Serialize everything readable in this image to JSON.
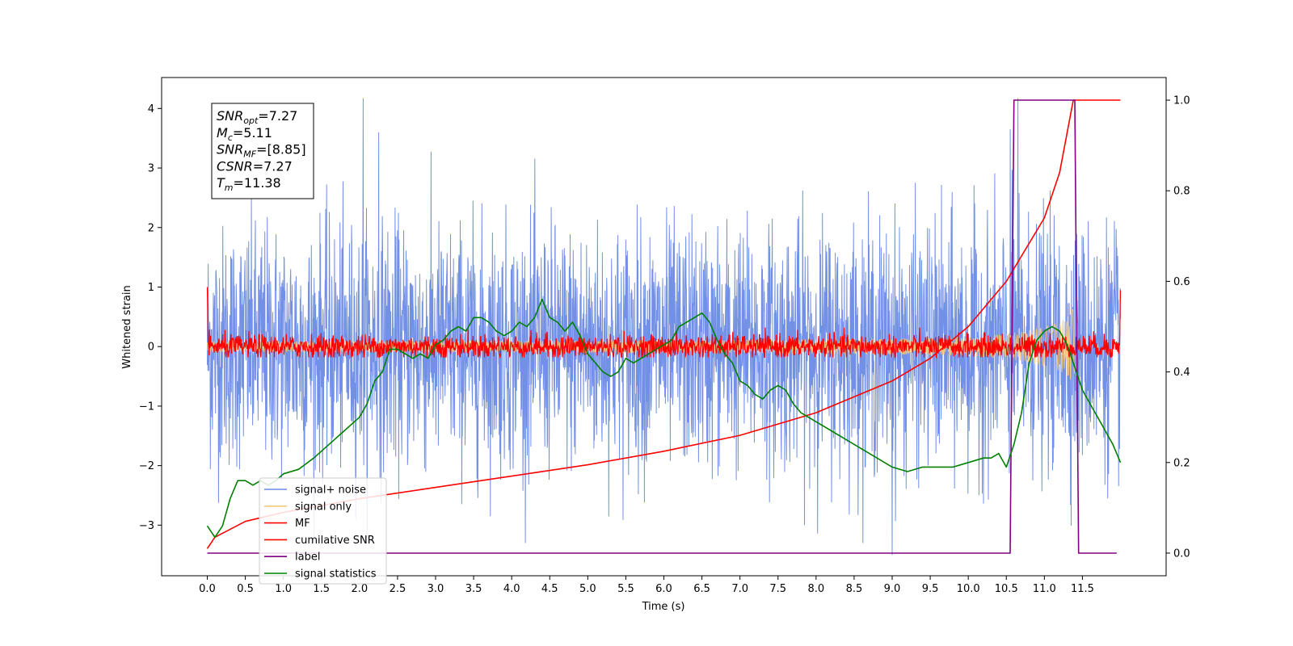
{
  "chart_data": {
    "type": "line",
    "title": "",
    "xlabel": "Time (s)",
    "ylabel": "Whitened strain",
    "xlim": [
      -0.6,
      12.6
    ],
    "ylim": [
      -3.85,
      4.52
    ],
    "y2lim": [
      -0.05,
      1.05
    ],
    "grid": false,
    "legend_position": "lower-left",
    "x_ticks": [
      "0.0",
      "0.5",
      "1.0",
      "1.5",
      "2.0",
      "2.5",
      "3.0",
      "3.5",
      "4.0",
      "4.5",
      "5.0",
      "5.5",
      "6.0",
      "6.5",
      "7.0",
      "7.5",
      "8.0",
      "8.5",
      "9.0",
      "9.5",
      "10.0",
      "10.5",
      "11.0",
      "11.5"
    ],
    "y_ticks": [
      "-3",
      "-2",
      "-1",
      "0",
      "1",
      "2",
      "3",
      "4"
    ],
    "y2_ticks": [
      "0.0",
      "0.2",
      "0.4",
      "0.6",
      "0.8",
      "1.0"
    ],
    "annotation": [
      {
        "base": "SNR",
        "sub": "opt",
        "rest": "=7.27"
      },
      {
        "base": "M",
        "sub": "c",
        "rest": "=5.11"
      },
      {
        "base": "SNR",
        "sub": "MF",
        "rest": "=[8.85]"
      },
      {
        "base": "CSNR",
        "sub": "",
        "rest": "=7.27"
      },
      {
        "base": "T",
        "sub": "m",
        "rest": "=11.38"
      }
    ],
    "series": [
      {
        "name": "signal+ noise",
        "color": "#6b8ae6",
        "axis": "left",
        "pattern": "noise",
        "x_start": 0.0,
        "x_end": 12.0,
        "amplitude": 1.0,
        "extreme_peaks": [
          4.17,
          3.6,
          -3.5,
          3.65,
          4.17
        ]
      },
      {
        "name": "signal only",
        "color": "#f5c77a",
        "axis": "left",
        "pattern": "chirp",
        "x_start": 0.0,
        "x_end": 11.4,
        "max_amplitude": 0.75
      },
      {
        "name": "MF",
        "color": "#ff0000",
        "axis": "left",
        "pattern": "noise",
        "x_start": 0.0,
        "x_end": 12.0,
        "amplitude": 0.1,
        "start_value": 1.0,
        "end_value": 0.95
      },
      {
        "name": "cumilative SNR",
        "color": "#ff0000",
        "axis": "right",
        "x": [
          0.0,
          0.1,
          0.5,
          1.0,
          2.0,
          3.0,
          4.0,
          5.0,
          6.0,
          7.0,
          8.0,
          8.5,
          9.0,
          9.5,
          10.0,
          10.5,
          11.0,
          11.2,
          11.38,
          12.0
        ],
        "y": [
          0.01,
          0.035,
          0.07,
          0.09,
          0.12,
          0.145,
          0.17,
          0.195,
          0.225,
          0.26,
          0.31,
          0.345,
          0.38,
          0.43,
          0.5,
          0.6,
          0.74,
          0.84,
          1.0,
          1.0
        ]
      },
      {
        "name": "label",
        "color": "#800080",
        "axis": "right",
        "x": [
          0.0,
          10.55,
          10.6,
          11.4,
          11.45,
          11.95
        ],
        "y": [
          0.0,
          0.0,
          1.0,
          1.0,
          0.0,
          0.0
        ]
      },
      {
        "name": "signal statistics",
        "color": "#008000",
        "axis": "right",
        "x": [
          0.0,
          0.1,
          0.2,
          0.3,
          0.4,
          0.5,
          0.6,
          0.7,
          0.8,
          0.9,
          1.0,
          1.2,
          1.4,
          1.6,
          1.8,
          2.0,
          2.1,
          2.2,
          2.3,
          2.4,
          2.5,
          2.6,
          2.7,
          2.8,
          2.9,
          3.0,
          3.1,
          3.2,
          3.3,
          3.4,
          3.5,
          3.6,
          3.7,
          3.8,
          3.9,
          4.0,
          4.1,
          4.2,
          4.3,
          4.4,
          4.5,
          4.6,
          4.7,
          4.8,
          4.9,
          5.0,
          5.1,
          5.2,
          5.3,
          5.4,
          5.5,
          5.6,
          5.7,
          5.8,
          5.9,
          6.0,
          6.1,
          6.2,
          6.3,
          6.4,
          6.5,
          6.6,
          6.7,
          6.8,
          6.9,
          7.0,
          7.1,
          7.2,
          7.3,
          7.4,
          7.5,
          7.6,
          7.7,
          7.8,
          7.9,
          8.0,
          8.2,
          8.4,
          8.6,
          8.8,
          9.0,
          9.2,
          9.4,
          9.6,
          9.8,
          10.0,
          10.2,
          10.3,
          10.4,
          10.5,
          10.6,
          10.7,
          10.8,
          10.9,
          11.0,
          11.1,
          11.2,
          11.3,
          11.4,
          11.5,
          11.6,
          11.7,
          11.8,
          11.9,
          12.0
        ],
        "y": [
          0.06,
          0.035,
          0.06,
          0.12,
          0.16,
          0.16,
          0.15,
          0.16,
          0.15,
          0.16,
          0.175,
          0.185,
          0.21,
          0.24,
          0.27,
          0.3,
          0.33,
          0.38,
          0.4,
          0.45,
          0.45,
          0.44,
          0.43,
          0.44,
          0.43,
          0.46,
          0.47,
          0.49,
          0.5,
          0.49,
          0.52,
          0.52,
          0.51,
          0.49,
          0.48,
          0.49,
          0.51,
          0.5,
          0.52,
          0.56,
          0.52,
          0.51,
          0.49,
          0.51,
          0.48,
          0.44,
          0.42,
          0.4,
          0.39,
          0.4,
          0.43,
          0.42,
          0.43,
          0.44,
          0.45,
          0.46,
          0.47,
          0.5,
          0.51,
          0.52,
          0.53,
          0.51,
          0.47,
          0.44,
          0.42,
          0.38,
          0.37,
          0.35,
          0.34,
          0.36,
          0.37,
          0.36,
          0.33,
          0.31,
          0.3,
          0.29,
          0.27,
          0.25,
          0.23,
          0.21,
          0.19,
          0.18,
          0.19,
          0.19,
          0.19,
          0.2,
          0.21,
          0.21,
          0.22,
          0.19,
          0.24,
          0.31,
          0.42,
          0.47,
          0.49,
          0.5,
          0.49,
          0.46,
          0.41,
          0.36,
          0.33,
          0.3,
          0.27,
          0.24,
          0.2
        ]
      }
    ]
  }
}
